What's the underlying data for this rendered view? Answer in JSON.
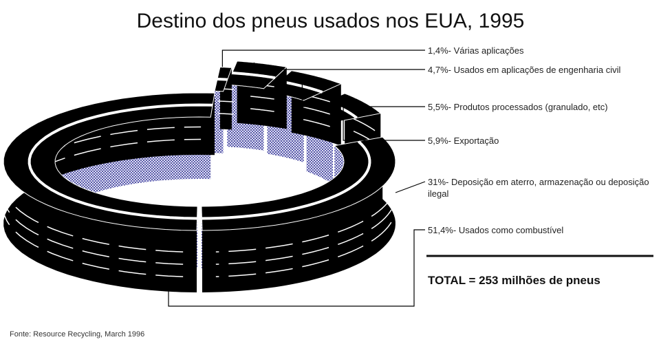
{
  "chart_data": {
    "type": "tire",
    "title": "Destino dos pneus usados nos EUA, 1995",
    "categories": [
      "- Várias aplicações",
      "- Usados em aplicações de engenharia civil",
      "- Produtos processados (granulado, etc)",
      "- Exportação",
      "- Deposição em aterro, armazenação ou deposição ilegal",
      "- Usados como combustível"
    ],
    "values": [
      1.4,
      4.7,
      5.5,
      5.9,
      31,
      51.4
    ],
    "value_labels": [
      "1,4%",
      "4,7%",
      "5,5%",
      "5,9%",
      "31%",
      "51,4%"
    ],
    "color": "#000000",
    "total_label": "TOTAL = 253 milhões de pneus",
    "source": "Fonte: Resource Recycling, March 1996"
  }
}
